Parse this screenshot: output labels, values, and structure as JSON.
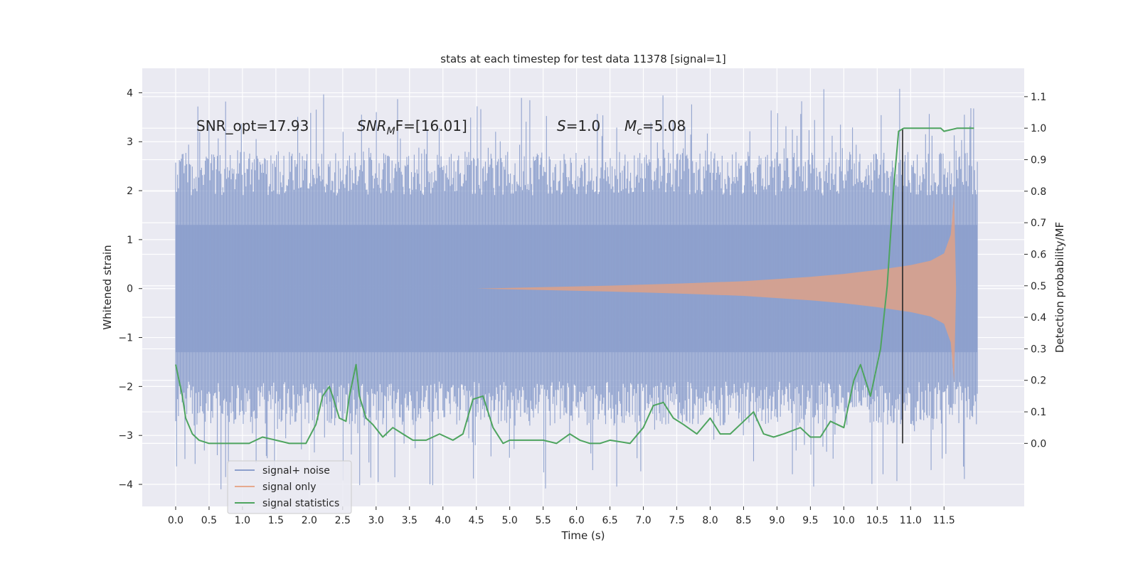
{
  "chart_data": {
    "type": "line",
    "title": "stats at each timestep for test data 11378 [signal=1]",
    "xlabel": "Time (s)",
    "ylabel": "Whitened strain",
    "ylabel_right": "Detection probability/MF",
    "xlim": [
      -0.5,
      12.7
    ],
    "ylim": [
      -4.45,
      4.5
    ],
    "ylim_right": [
      -0.2,
      1.19
    ],
    "x_ticks": [
      "0.0",
      "0.5",
      "1.0",
      "1.5",
      "2.0",
      "2.5",
      "3.0",
      "3.5",
      "4.0",
      "4.5",
      "5.0",
      "5.5",
      "6.0",
      "6.5",
      "7.0",
      "7.5",
      "8.0",
      "8.5",
      "9.0",
      "9.5",
      "10.0",
      "10.5",
      "11.0",
      "11.5"
    ],
    "y_ticks_left": [
      "4",
      "3",
      "2",
      "1",
      "0",
      "−1",
      "−2",
      "−3",
      "−4"
    ],
    "y_ticks_right": [
      "1.1",
      "1.0",
      "0.9",
      "0.8",
      "0.7",
      "0.6",
      "0.5",
      "0.4",
      "0.3",
      "0.2",
      "0.1",
      "0.0"
    ],
    "grid": true,
    "legend_position": "lower-left",
    "annotations": {
      "snr_opt": "SNR_opt=17.93",
      "snr_mf_main": "SNR",
      "snr_mf_sub": "M",
      "snr_mf_rest": "F=[16.01]",
      "s_italic": "S",
      "s_rest": "=1.0",
      "mc_main": "M",
      "mc_sub": "c",
      "mc_rest": "=5.08"
    },
    "detection_time": 10.88,
    "series": [
      {
        "name": "signal+ noise",
        "color": "#8c9fcc",
        "kind": "noise",
        "x_range": [
          0.0,
          12.0
        ],
        "envelope": 1.3,
        "peak_max": 4.1,
        "trough_min": -4.1
      },
      {
        "name": "signal only",
        "color": "#d9a18c",
        "kind": "chirp",
        "x_range": [
          4.5,
          11.68
        ],
        "envelope": [
          [
            4.5,
            0.0
          ],
          [
            5.5,
            0.03
          ],
          [
            6.5,
            0.06
          ],
          [
            7.5,
            0.1
          ],
          [
            8.5,
            0.15
          ],
          [
            9.5,
            0.24
          ],
          [
            10.0,
            0.3
          ],
          [
            10.5,
            0.38
          ],
          [
            11.0,
            0.48
          ],
          [
            11.3,
            0.57
          ],
          [
            11.5,
            0.72
          ],
          [
            11.6,
            1.1
          ],
          [
            11.65,
            1.9
          ],
          [
            11.68,
            0.0
          ]
        ]
      },
      {
        "name": "signal statistics",
        "color": "#4ea45f",
        "kind": "line",
        "x": [
          0.0,
          0.1,
          0.15,
          0.25,
          0.35,
          0.5,
          0.7,
          0.9,
          1.1,
          1.3,
          1.5,
          1.7,
          1.95,
          2.1,
          2.2,
          2.3,
          2.35,
          2.45,
          2.55,
          2.6,
          2.7,
          2.75,
          2.85,
          2.95,
          3.1,
          3.25,
          3.4,
          3.55,
          3.75,
          3.95,
          4.15,
          4.3,
          4.45,
          4.6,
          4.75,
          4.9,
          5.0,
          5.2,
          5.5,
          5.7,
          5.9,
          6.05,
          6.2,
          6.35,
          6.5,
          6.8,
          7.0,
          7.15,
          7.3,
          7.45,
          7.6,
          7.8,
          8.0,
          8.15,
          8.3,
          8.45,
          8.65,
          8.8,
          8.95,
          9.1,
          9.35,
          9.5,
          9.65,
          9.8,
          10.0,
          10.15,
          10.25,
          10.4,
          10.55,
          10.65,
          10.75,
          10.82,
          10.9,
          10.95,
          11.05,
          11.2,
          11.45,
          11.5,
          11.7,
          11.85,
          11.95
        ],
        "y": [
          0.25,
          0.15,
          0.08,
          0.03,
          0.01,
          0.0,
          0.0,
          0.0,
          0.0,
          0.02,
          0.01,
          0.0,
          0.0,
          0.06,
          0.15,
          0.18,
          0.15,
          0.08,
          0.07,
          0.15,
          0.25,
          0.15,
          0.08,
          0.06,
          0.02,
          0.05,
          0.03,
          0.01,
          0.01,
          0.03,
          0.01,
          0.03,
          0.14,
          0.15,
          0.05,
          0.0,
          0.01,
          0.01,
          0.01,
          0.0,
          0.03,
          0.01,
          0.0,
          0.0,
          0.01,
          0.0,
          0.05,
          0.12,
          0.13,
          0.08,
          0.06,
          0.03,
          0.08,
          0.03,
          0.03,
          0.06,
          0.1,
          0.03,
          0.02,
          0.03,
          0.05,
          0.02,
          0.02,
          0.07,
          0.05,
          0.2,
          0.25,
          0.15,
          0.3,
          0.5,
          0.82,
          0.99,
          1.0,
          1.0,
          1.0,
          1.0,
          1.0,
          0.99,
          1.0,
          1.0,
          1.0
        ]
      }
    ]
  }
}
